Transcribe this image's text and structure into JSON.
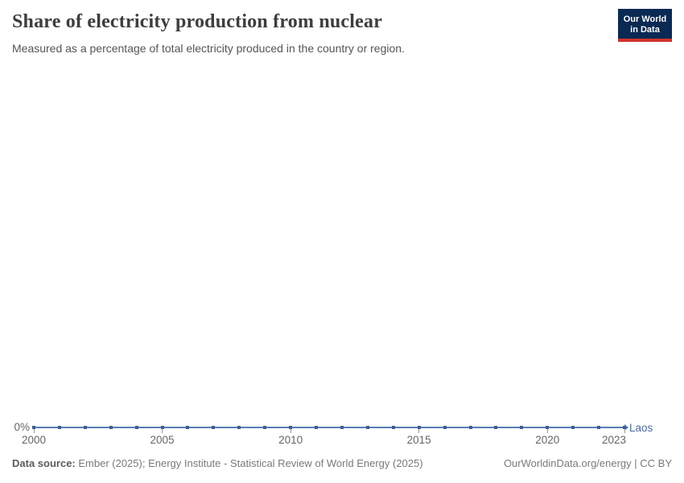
{
  "header": {
    "title": "Share of electricity production from nuclear",
    "subtitle": "Measured as a percentage of total electricity produced in the country or region.",
    "logo": {
      "line1": "Our World",
      "line2": "in Data"
    }
  },
  "chart_data": {
    "type": "line",
    "title": "Share of electricity production from nuclear",
    "subtitle": "Measured as a percentage of total electricity produced in the country or region.",
    "x": [
      2000,
      2001,
      2002,
      2003,
      2004,
      2005,
      2006,
      2007,
      2008,
      2009,
      2010,
      2011,
      2012,
      2013,
      2014,
      2015,
      2016,
      2017,
      2018,
      2019,
      2020,
      2021,
      2022,
      2023
    ],
    "series": [
      {
        "name": "Laos",
        "color": "#4c6a9c",
        "values": [
          0,
          0,
          0,
          0,
          0,
          0,
          0,
          0,
          0,
          0,
          0,
          0,
          0,
          0,
          0,
          0,
          0,
          0,
          0,
          0,
          0,
          0,
          0,
          0
        ]
      }
    ],
    "x_ticks": [
      2000,
      2005,
      2010,
      2015,
      2020,
      2023
    ],
    "y_axis": {
      "tick_label": "0%",
      "min": 0
    },
    "xlabel": "",
    "ylabel": "",
    "grid": false,
    "legend_position": "end-of-line"
  },
  "footer": {
    "datasource_label": "Data source:",
    "datasource_text": " Ember (2025); Energy Institute - Statistical Review of World Energy (2025)",
    "link_text": "OurWorldinData.org/energy | CC BY"
  },
  "colors": {
    "line": "#5b7cb4",
    "marker": "#3f5d92",
    "axis_text": "#666666",
    "logo_bg": "#0a2953",
    "logo_accent": "#d0342c"
  }
}
